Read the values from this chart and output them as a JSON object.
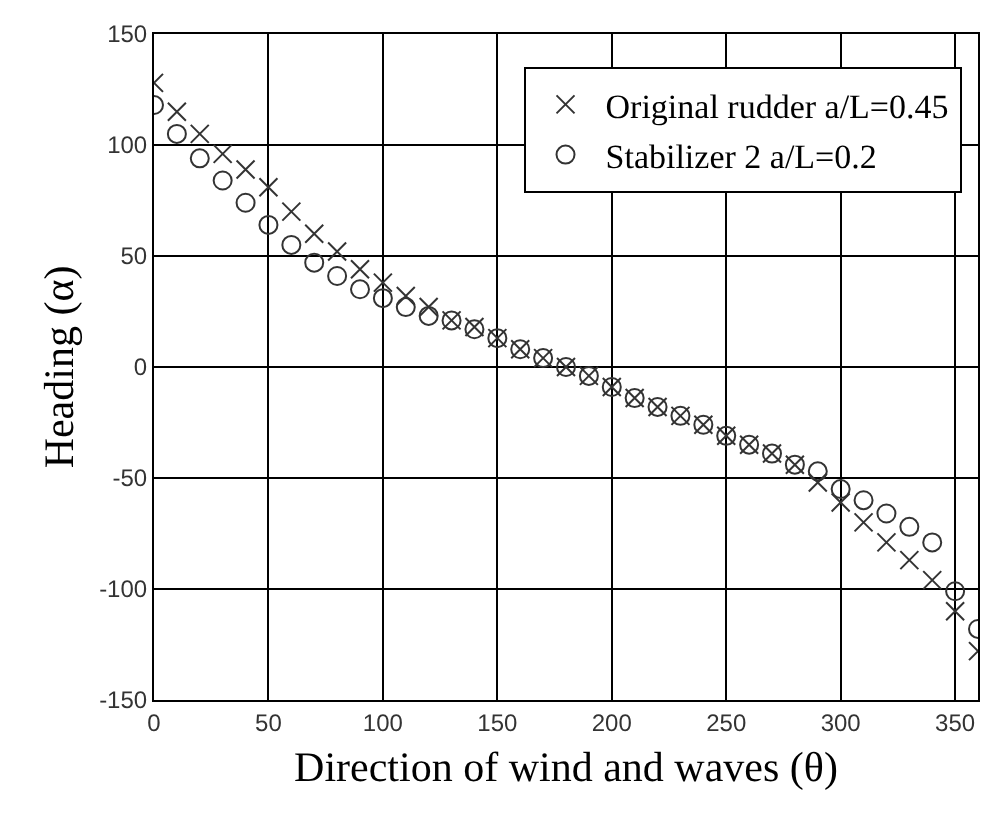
{
  "chart_data": {
    "type": "scatter",
    "xlabel": "Direction of wind and waves (θ)",
    "ylabel": "Heading (α)",
    "x": [
      0,
      10,
      20,
      30,
      40,
      50,
      60,
      70,
      80,
      90,
      100,
      110,
      120,
      130,
      140,
      150,
      160,
      170,
      180,
      190,
      200,
      210,
      220,
      230,
      240,
      250,
      260,
      270,
      280,
      290,
      300,
      310,
      320,
      330,
      340,
      350,
      360
    ],
    "series": [
      {
        "name": "Original rudder a/L=0.45",
        "color": "#333333",
        "marker": "cross",
        "values": [
          128,
          115,
          105,
          96,
          89,
          81,
          70,
          60,
          52,
          44,
          38,
          32,
          27,
          21,
          18,
          13,
          8,
          4,
          0,
          -4,
          -9,
          -14,
          -18,
          -22,
          -26,
          -31,
          -35,
          -39,
          -44,
          -52,
          -61,
          -70,
          -79,
          -87,
          -96,
          -110,
          -128
        ]
      },
      {
        "name": "Stabilizer 2 a/L=0.2",
        "color": "#333333",
        "marker": "circle",
        "values": [
          118,
          105,
          94,
          84,
          74,
          64,
          55,
          47,
          41,
          35,
          31,
          27,
          23,
          21,
          17,
          13,
          8,
          4,
          0,
          -4,
          -9,
          -14,
          -18,
          -22,
          -26,
          -31,
          -35,
          -39,
          -44,
          -47,
          -55,
          -60,
          -66,
          -72,
          -79,
          -101,
          -118
        ]
      }
    ],
    "xlim": [
      0,
      360
    ],
    "xticks": [
      0,
      50,
      100,
      150,
      200,
      250,
      300,
      350
    ],
    "ylim": [
      -150,
      150
    ],
    "yticks": [
      -150,
      -100,
      -50,
      0,
      50,
      100,
      150
    ],
    "grid": true,
    "legend": "top right"
  }
}
